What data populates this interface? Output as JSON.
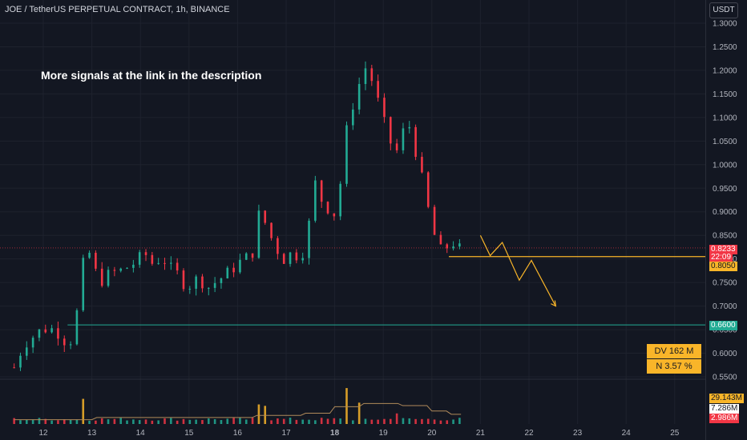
{
  "header": {
    "symbol_title": "JOE / TetherUS PERPETUAL CONTRACT, 1h, BINANCE",
    "currency": "USDT"
  },
  "annotation": "More signals at the link in the description",
  "price_tags": {
    "last_price": {
      "value": "0.8233",
      "color": "#f23645"
    },
    "countdown": {
      "value": "22:09",
      "color": "#f23645"
    },
    "resistance": {
      "value": "0.8050",
      "color": "#f9b529"
    },
    "support": {
      "value": "0.6600",
      "color": "#22ab94"
    }
  },
  "info_boxes": {
    "dv": "DV 162 M",
    "n": "N 3.57 %"
  },
  "volume_tags": {
    "high": {
      "value": "29.143M",
      "color": "#f9b529"
    },
    "mid": {
      "value": "7.286M",
      "color": "#ffffff"
    },
    "low": {
      "value": "2.986M",
      "color": "#f23645"
    }
  },
  "colors": {
    "up": "#22ab94",
    "down": "#f23645",
    "background": "#131722",
    "grid": "#1e222d",
    "projection": "#f9b529"
  },
  "chart_data": {
    "type": "candlestick",
    "x_ticks": [
      "12",
      "13",
      "14",
      "15",
      "16",
      "17",
      "18",
      "19",
      "20",
      "21",
      "22",
      "23",
      "24",
      "25"
    ],
    "y_ticks": [
      "1.3000",
      "1.2500",
      "1.2000",
      "1.1500",
      "1.1000",
      "1.0500",
      "1.0000",
      "0.9500",
      "0.9000",
      "0.8500",
      "0.8000",
      "0.7500",
      "0.7000",
      "0.6500",
      "0.6000",
      "0.5500"
    ],
    "ylim": [
      0.55,
      1.3
    ],
    "x_range_days": [
      11.3,
      25.3
    ],
    "horizontal_levels": [
      {
        "price": 0.805,
        "label": "0.8050"
      },
      {
        "price": 0.66,
        "label": "0.6600"
      }
    ],
    "price_path": [
      {
        "day": 11.4,
        "price": 0.57
      },
      {
        "day": 11.6,
        "price": 0.62
      },
      {
        "day": 11.9,
        "price": 0.645
      },
      {
        "day": 12.1,
        "price": 0.655
      },
      {
        "day": 12.3,
        "price": 0.645
      },
      {
        "day": 12.5,
        "price": 0.62
      },
      {
        "day": 12.65,
        "price": 0.64
      },
      {
        "day": 12.75,
        "price": 0.75
      },
      {
        "day": 12.9,
        "price": 0.83
      },
      {
        "day": 13.05,
        "price": 0.775
      },
      {
        "day": 13.2,
        "price": 0.755
      },
      {
        "day": 13.4,
        "price": 0.77
      },
      {
        "day": 13.6,
        "price": 0.775
      },
      {
        "day": 13.85,
        "price": 0.79
      },
      {
        "day": 14.1,
        "price": 0.81
      },
      {
        "day": 14.25,
        "price": 0.79
      },
      {
        "day": 14.45,
        "price": 0.805
      },
      {
        "day": 14.6,
        "price": 0.78
      },
      {
        "day": 14.8,
        "price": 0.765
      },
      {
        "day": 14.95,
        "price": 0.74
      },
      {
        "day": 15.2,
        "price": 0.76
      },
      {
        "day": 15.4,
        "price": 0.74
      },
      {
        "day": 15.6,
        "price": 0.755
      },
      {
        "day": 15.8,
        "price": 0.77
      },
      {
        "day": 16.0,
        "price": 0.79
      },
      {
        "day": 16.15,
        "price": 0.8
      },
      {
        "day": 16.3,
        "price": 0.81
      },
      {
        "day": 16.45,
        "price": 0.9
      },
      {
        "day": 16.6,
        "price": 0.87
      },
      {
        "day": 16.75,
        "price": 0.83
      },
      {
        "day": 16.95,
        "price": 0.8
      },
      {
        "day": 17.15,
        "price": 0.815
      },
      {
        "day": 17.3,
        "price": 0.8
      },
      {
        "day": 17.45,
        "price": 0.86
      },
      {
        "day": 17.6,
        "price": 0.96
      },
      {
        "day": 17.75,
        "price": 0.92
      },
      {
        "day": 17.9,
        "price": 0.905
      },
      {
        "day": 18.05,
        "price": 0.89
      },
      {
        "day": 18.2,
        "price": 1.05
      },
      {
        "day": 18.35,
        "price": 1.12
      },
      {
        "day": 18.5,
        "price": 1.17
      },
      {
        "day": 18.65,
        "price": 1.21
      },
      {
        "day": 18.8,
        "price": 1.17
      },
      {
        "day": 18.95,
        "price": 1.11
      },
      {
        "day": 19.1,
        "price": 1.06
      },
      {
        "day": 19.25,
        "price": 1.02
      },
      {
        "day": 19.35,
        "price": 1.05
      },
      {
        "day": 19.5,
        "price": 1.1
      },
      {
        "day": 19.6,
        "price": 1.05
      },
      {
        "day": 19.7,
        "price": 1.02
      },
      {
        "day": 19.85,
        "price": 0.94
      },
      {
        "day": 20.0,
        "price": 0.87
      },
      {
        "day": 20.15,
        "price": 0.815
      },
      {
        "day": 20.3,
        "price": 0.825
      },
      {
        "day": 20.45,
        "price": 0.835
      },
      {
        "day": 20.55,
        "price": 0.82
      },
      {
        "day": 20.65,
        "price": 0.8233
      }
    ],
    "volume_series": {
      "low_level": 2.986,
      "base_level": 7.286,
      "spikes": [
        {
          "day": 12.8,
          "value": 29.143
        },
        {
          "day": 16.5,
          "value": 22.0
        },
        {
          "day": 18.2,
          "value": 38.0
        },
        {
          "day": 18.45,
          "value": 20.0
        },
        {
          "day": 19.3,
          "value": 12.0
        }
      ]
    },
    "projection_path": [
      {
        "day": 21.0,
        "price": 0.85
      },
      {
        "day": 21.2,
        "price": 0.807
      },
      {
        "day": 21.45,
        "price": 0.835
      },
      {
        "day": 21.8,
        "price": 0.755
      },
      {
        "day": 22.05,
        "price": 0.797
      },
      {
        "day": 22.55,
        "price": 0.7
      }
    ]
  }
}
